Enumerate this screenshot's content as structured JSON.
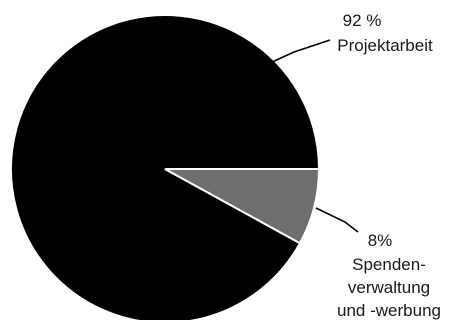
{
  "chart_data": {
    "type": "pie",
    "slices": [
      {
        "value": 92,
        "value_label": "92 %",
        "label_lines": [
          "Projektarbeit"
        ],
        "color": "#000000"
      },
      {
        "value": 8,
        "value_label": "8%",
        "label_lines": [
          "Spenden-",
          "verwaltung",
          "und -werbung"
        ],
        "color": "#6e6e6e"
      }
    ],
    "border_color": "#ffffff"
  }
}
